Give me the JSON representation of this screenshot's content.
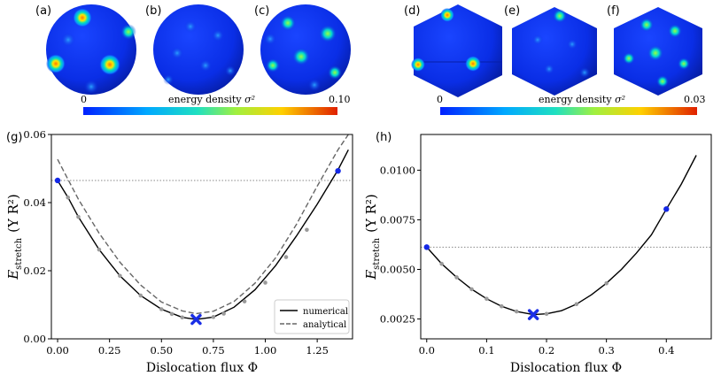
{
  "panel_labels": [
    "(a)",
    "(b)",
    "(c)",
    "(d)",
    "(e)",
    "(f)",
    "(g)",
    "(h)"
  ],
  "colorbars": [
    {
      "min_label": "0",
      "max_label": "0.10",
      "label": "energy density",
      "symbol": "σ²"
    },
    {
      "min_label": "0",
      "max_label": "0.03",
      "label": "energy density",
      "symbol": "σ²"
    }
  ],
  "colors": {
    "numerical": "#000000",
    "analytical": "#666666",
    "endpoint": "#1428e6",
    "minimum": "#1a2ee6",
    "sample_points": "#9a9a9a",
    "reference_line": "#888888"
  },
  "chart_data": [
    {
      "type": "line",
      "panel": "(g)",
      "xlabel": "Dislocation flux Φ",
      "ylabel_main": "E",
      "ylabel_sub": "stretch",
      "ylabel_unit": "(Y R²)",
      "xlim": [
        -0.03,
        1.42
      ],
      "ylim": [
        0.0,
        0.06
      ],
      "xticks": [
        0.0,
        0.25,
        0.5,
        0.75,
        1.0,
        1.25
      ],
      "xtick_labels": [
        "0.00",
        "0.25",
        "0.50",
        "0.75",
        "1.00",
        "1.25"
      ],
      "yticks": [
        0.0,
        0.02,
        0.04,
        0.06
      ],
      "ytick_labels": [
        "0.00",
        "0.02",
        "0.04",
        "0.06"
      ],
      "legend": {
        "position": "bottom-right",
        "entries": [
          "numerical",
          "analytical"
        ]
      },
      "series": [
        {
          "name": "numerical",
          "style": "solid",
          "x": [
            0.0,
            0.05,
            0.1,
            0.2,
            0.3,
            0.4,
            0.5,
            0.6,
            0.667,
            0.75,
            0.85,
            0.95,
            1.05,
            1.15,
            1.25,
            1.35,
            1.4
          ],
          "y": [
            0.0465,
            0.0415,
            0.0358,
            0.0262,
            0.0185,
            0.0127,
            0.0087,
            0.0063,
            0.0057,
            0.0064,
            0.0093,
            0.0144,
            0.0215,
            0.0302,
            0.0395,
            0.0496,
            0.0555
          ]
        },
        {
          "name": "analytical",
          "style": "dashed",
          "x": [
            0.0,
            0.05,
            0.1,
            0.2,
            0.3,
            0.4,
            0.5,
            0.6,
            0.667,
            0.75,
            0.85,
            0.95,
            1.05,
            1.15,
            1.25,
            1.35,
            1.4
          ],
          "y": [
            0.0527,
            0.0468,
            0.041,
            0.031,
            0.0225,
            0.0158,
            0.0108,
            0.0082,
            0.0074,
            0.0081,
            0.011,
            0.0163,
            0.0238,
            0.0336,
            0.0448,
            0.0555,
            0.06
          ]
        }
      ],
      "sample_points": {
        "x": [
          0.05,
          0.1,
          0.2,
          0.3,
          0.4,
          0.5,
          0.55,
          0.6,
          0.75,
          0.8,
          0.9,
          1.0,
          1.1,
          1.2
        ],
        "y": [
          0.0415,
          0.0358,
          0.0262,
          0.0185,
          0.0127,
          0.0087,
          0.0073,
          0.0063,
          0.0064,
          0.0074,
          0.011,
          0.0165,
          0.024,
          0.032
        ]
      },
      "endpoints": {
        "x": [
          0.0,
          1.35
        ],
        "y": [
          0.0465,
          0.0493
        ]
      },
      "minimum": {
        "x": 0.667,
        "y": 0.0057
      },
      "reference_line_y": 0.0465
    },
    {
      "type": "line",
      "panel": "(h)",
      "xlabel": "Dislocation flux Φ",
      "ylabel_main": "E",
      "ylabel_sub": "stretch",
      "ylabel_unit": "(Y R²)",
      "xlim": [
        -0.01,
        0.475
      ],
      "ylim": [
        0.0015,
        0.0118
      ],
      "xticks": [
        0.0,
        0.1,
        0.2,
        0.3,
        0.4
      ],
      "xtick_labels": [
        "0.0",
        "0.1",
        "0.2",
        "0.3",
        "0.4"
      ],
      "yticks": [
        0.0025,
        0.005,
        0.0075,
        0.01
      ],
      "ytick_labels": [
        "0.0025",
        "0.0050",
        "0.0075",
        "0.0100"
      ],
      "series": [
        {
          "name": "numerical",
          "style": "solid",
          "x": [
            0.0,
            0.025,
            0.05,
            0.075,
            0.1,
            0.125,
            0.15,
            0.178,
            0.2,
            0.225,
            0.25,
            0.275,
            0.3,
            0.325,
            0.35,
            0.375,
            0.4,
            0.425,
            0.45
          ],
          "y": [
            0.00612,
            0.00528,
            0.0046,
            0.004,
            0.00352,
            0.00314,
            0.00288,
            0.00272,
            0.00276,
            0.00292,
            0.00325,
            0.00372,
            0.0043,
            0.005,
            0.00582,
            0.00674,
            0.00804,
            0.0093,
            0.01075
          ]
        }
      ],
      "sample_points": {
        "x": [
          0.025,
          0.05,
          0.075,
          0.1,
          0.125,
          0.15,
          0.2,
          0.25,
          0.3
        ],
        "y": [
          0.00528,
          0.0046,
          0.004,
          0.00352,
          0.00314,
          0.00288,
          0.00276,
          0.00325,
          0.0043
        ]
      },
      "endpoints": {
        "x": [
          0.0,
          0.4
        ],
        "y": [
          0.00612,
          0.00804
        ]
      },
      "minimum": {
        "x": 0.178,
        "y": 0.00272
      },
      "reference_line_y": 0.00612
    }
  ]
}
